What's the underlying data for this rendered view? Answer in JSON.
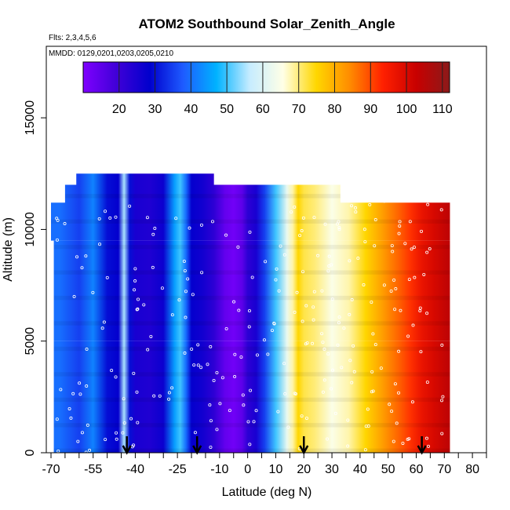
{
  "chart_data": {
    "type": "heatmap",
    "title": "ATOM2 Southbound Solar_Zenith_Angle",
    "subtitle_flights": "Flts: 2,3,4,5,6",
    "subtitle_dates": "MMDD: 0129,0201,0203,0205,0210",
    "xlabel": "Latitude (deg N)",
    "ylabel": "Altitude (m)",
    "xlim": [
      -70,
      85
    ],
    "ylim": [
      0,
      17500
    ],
    "x_ticks": [
      -70,
      -55,
      -40,
      -25,
      -10,
      0,
      10,
      20,
      30,
      40,
      50,
      60,
      70,
      80
    ],
    "x_minor_ticks": [
      -65,
      -60,
      -50,
      -45,
      -35,
      -30,
      -20,
      -15,
      -5,
      5,
      15,
      25,
      35,
      45,
      55,
      65,
      75,
      85
    ],
    "y_ticks": [
      0,
      5000,
      10000,
      15000
    ],
    "colorbar": {
      "ticks": [
        20,
        30,
        40,
        50,
        60,
        70,
        80,
        90,
        100,
        110
      ],
      "range": [
        10,
        112
      ],
      "colors": [
        "#7f00ff",
        "#4000d8",
        "#0000cd",
        "#1e5bff",
        "#00b2ff",
        "#c6ecff",
        "#ffffe6",
        "#ffd700",
        "#ff8c00",
        "#ff2000",
        "#c80000",
        "#8b1a1a"
      ]
    },
    "latitude_profile": {
      "lat": [
        -67,
        -60,
        -55,
        -50,
        -46,
        -44,
        -42,
        -40,
        -35,
        -30,
        -26,
        -24,
        -22,
        -20,
        -16,
        -12,
        -8,
        -5,
        -2,
        0,
        3,
        6,
        10,
        14,
        16,
        18,
        20,
        24,
        30,
        36,
        42,
        48,
        54,
        58,
        62,
        66,
        71
      ],
      "sza": [
        40,
        35,
        42,
        30,
        28,
        55,
        30,
        25,
        24,
        27,
        45,
        50,
        40,
        28,
        26,
        22,
        14,
        12,
        15,
        22,
        25,
        35,
        50,
        62,
        68,
        75,
        72,
        70,
        65,
        68,
        75,
        82,
        88,
        92,
        97,
        100,
        104
      ]
    },
    "flight_curtains": [
      {
        "alt_min": 11800,
        "alt_max": 12500,
        "lat_min": -61,
        "lat_max": -12
      },
      {
        "alt_min": 11000,
        "alt_max": 12000,
        "lat_min": -65,
        "lat_max": 33
      },
      {
        "alt_min": 9500,
        "alt_max": 11200,
        "lat_min": -70,
        "lat_max": 72
      },
      {
        "alt_min": 5000,
        "alt_max": 9500,
        "lat_min": -69,
        "lat_max": 72
      },
      {
        "alt_min": 0,
        "alt_max": 5000,
        "lat_min": -69,
        "lat_max": 72
      }
    ],
    "arrows_lat": [
      -43,
      -18,
      20,
      62
    ]
  }
}
